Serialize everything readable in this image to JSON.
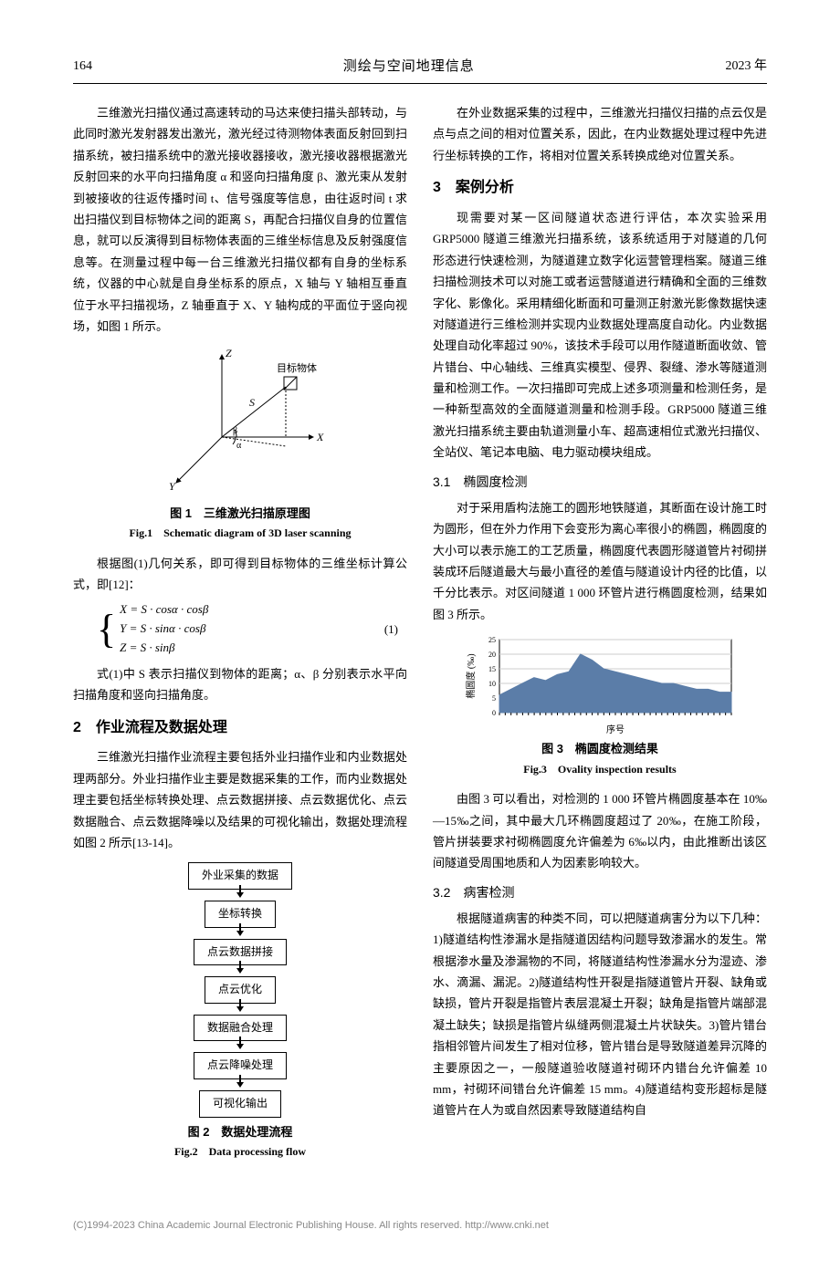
{
  "header": {
    "page": "164",
    "journal": "测绘与空间地理信息",
    "year": "2023 年"
  },
  "col1": {
    "para1": "三维激光扫描仪通过高速转动的马达来使扫描头部转动，与此同时激光发射器发出激光，激光经过待测物体表面反射回到扫描系统，被扫描系统中的激光接收器接收，激光接收器根据激光反射回来的水平向扫描角度 α 和竖向扫描角度 β、激光束从发射到被接收的往返传播时间 t、信号强度等信息，由往返时间 t 求出扫描仪到目标物体之间的距离 S，再配合扫描仪自身的位置信息，就可以反演得到目标物体表面的三维坐标信息及反射强度信息等。在测量过程中每一台三维激光扫描仪都有自身的坐标系统，仪器的中心就是自身坐标系的原点，X 轴与 Y 轴相互垂直位于水平扫描视场，Z 轴垂直于 X、Y 轴构成的平面位于竖向视场，如图 1 所示。",
    "fig1": {
      "label_target": "目标物体",
      "axis_x": "X",
      "axis_y": "Y",
      "axis_z": "Z",
      "axis_color": "#000000",
      "s_label": "S",
      "alpha": "α",
      "beta": "β",
      "caption_cn": "图 1　三维激光扫描原理图",
      "caption_en": "Fig.1　Schematic diagram of 3D laser scanning"
    },
    "para2": "根据图(1)几何关系，即可得到目标物体的三维坐标计算公式，即[12]：",
    "formula": {
      "line1": "X = S · cosα · cosβ",
      "line2": "Y = S · sinα · cosβ",
      "line3": "Z = S · sinβ",
      "eqnum": "(1)"
    },
    "para3": "式(1)中 S 表示扫描仪到物体的距离；α、β 分别表示水平向扫描角度和竖向扫描角度。",
    "sec2_title": "2　作业流程及数据处理",
    "para4": "三维激光扫描作业流程主要包括外业扫描作业和内业数据处理两部分。外业扫描作业主要是数据采集的工作，而内业数据处理主要包括坐标转换处理、点云数据拼接、点云数据优化、点云数据融合、点云数据降噪以及结果的可视化输出，数据处理流程如图 2 所示[13-14]。",
    "fig2": {
      "nodes": [
        "外业采集的数据",
        "坐标转换",
        "点云数据拼接",
        "点云优化",
        "数据融合处理",
        "点云降噪处理",
        "可视化输出"
      ],
      "box_border": "#000000",
      "box_fill": "#ffffff",
      "box_fontsize": 12,
      "caption_cn": "图 2　数据处理流程",
      "caption_en": "Fig.2　Data processing flow"
    }
  },
  "col2": {
    "para1": "在外业数据采集的过程中，三维激光扫描仪扫描的点云仅是点与点之间的相对位置关系，因此，在内业数据处理过程中先进行坐标转换的工作，将相对位置关系转换成绝对位置关系。",
    "sec3_title": "3　案例分析",
    "para2": "现需要对某一区间隧道状态进行评估，本次实验采用 GRP5000 隧道三维激光扫描系统，该系统适用于对隧道的几何形态进行快速检测，为隧道建立数字化运营管理档案。隧道三维扫描检测技术可以对施工或者运营隧道进行精确和全面的三维数字化、影像化。采用精细化断面和可量测正射激光影像数据快速对隧道进行三维检测并实现内业数据处理高度自动化。内业数据处理自动化率超过 90%，该技术手段可以用作隧道断面收敛、管片错台、中心轴线、三维真实模型、侵界、裂缝、渗水等隧道测量和检测工作。一次扫描即可完成上述多项测量和检测任务，是一种新型高效的全面隧道测量和检测手段。GRP5000 隧道三维激光扫描系统主要由轨道测量小车、超高速相位式激光扫描仪、全站仪、笔记本电脑、电力驱动模块组成。",
    "sub31_title": "3.1　椭圆度检测",
    "para3": "对于采用盾构法施工的圆形地铁隧道，其断面在设计施工时为圆形，但在外力作用下会变形为离心率很小的椭圆，椭圆度的大小可以表示施工的工艺质量，椭圆度代表圆形隧道管片衬砌拼装成环后隧道最大与最小直径的差值与隧道设计内径的比值，以千分比表示。对区间隧道 1 000 环管片进行椭圆度检测，结果如图 3 所示。",
    "fig3": {
      "type": "area",
      "x_label": "序号",
      "y_label": "椭圆度 (‰)",
      "ylim": [
        0,
        25
      ],
      "ytick_step": 5,
      "y_ticks": [
        0,
        5,
        10,
        15,
        20,
        25
      ],
      "fill_color": "#5b7da8",
      "grid_color": "#cccccc",
      "background_color": "#ffffff",
      "axis_color": "#000000",
      "label_fontsize": 8,
      "x_domain": [
        1,
        1000
      ],
      "sample_points_x": [
        1,
        50,
        100,
        150,
        200,
        250,
        300,
        350,
        400,
        450,
        500,
        550,
        600,
        650,
        700,
        750,
        800,
        850,
        900,
        950,
        1000
      ],
      "sample_points_y": [
        6,
        8,
        10,
        12,
        11,
        13,
        14,
        20,
        18,
        15,
        14,
        13,
        12,
        11,
        10,
        10,
        9,
        8,
        8,
        7,
        7
      ],
      "caption_cn": "图 3　椭圆度检测结果",
      "caption_en": "Fig.3　Ovality inspection results"
    },
    "para4": "由图 3 可以看出，对检测的 1 000 环管片椭圆度基本在 10‰—15‰之间，其中最大几环椭圆度超过了 20‰，在施工阶段，管片拼装要求衬砌椭圆度允许偏差为 6‰以内，由此推断出该区间隧道受周围地质和人为因素影响较大。",
    "sub32_title": "3.2　病害检测",
    "para5": "根据隧道病害的种类不同，可以把隧道病害分为以下几种：1)隧道结构性渗漏水是指隧道因结构问题导致渗漏水的发生。常根据渗水量及渗漏物的不同，将隧道结构性渗漏水分为湿迹、渗水、滴漏、漏泥。2)隧道结构性开裂是指隧道管片开裂、缺角或缺损，管片开裂是指管片表层混凝土开裂；缺角是指管片端部混凝土缺失；缺损是指管片纵缝两侧混凝土片状缺失。3)管片错台指相邻管片间发生了相对位移，管片错台是导致隧道差异沉降的主要原因之一，一般隧道验收隧道衬砌环内错台允许偏差 10 mm，衬砌环间错台允许偏差 15 mm。4)隧道结构变形超标是隧道管片在人为或自然因素导致隧道结构自"
  },
  "footer": "(C)1994-2023 China Academic Journal Electronic Publishing House. All rights reserved.    http://www.cnki.net"
}
